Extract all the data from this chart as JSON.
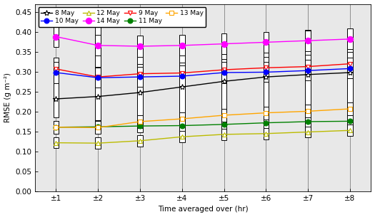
{
  "x_labels": [
    "±1",
    "±2",
    "±3",
    "±4",
    "±5",
    "±6",
    "±7",
    "±8"
  ],
  "x_vals": [
    1,
    2,
    3,
    4,
    5,
    6,
    7,
    8
  ],
  "xlabel": "Time averaged over (hr)",
  "ylabel": "RMSE (g m⁻²)",
  "ylim": [
    0.0,
    0.47
  ],
  "yticks": [
    0.0,
    0.05,
    0.1,
    0.15,
    0.2,
    0.25,
    0.3,
    0.35,
    0.4,
    0.45
  ],
  "series": {
    "8 May": {
      "color": "black",
      "marker": "*",
      "markersize": 6,
      "filled": false,
      "median": [
        0.232,
        0.238,
        0.248,
        0.262,
        0.276,
        0.287,
        0.293,
        0.298
      ],
      "box_lo": [
        0.185,
        0.175,
        0.185,
        0.185,
        0.19,
        0.2,
        0.195,
        0.21
      ],
      "box_hi": [
        0.295,
        0.425,
        0.385,
        0.38,
        0.38,
        0.38,
        0.405,
        0.4
      ]
    },
    "9 May": {
      "color": "red",
      "marker": "v",
      "markersize": 5,
      "filled": false,
      "median": [
        0.307,
        0.287,
        0.295,
        0.297,
        0.305,
        0.31,
        0.313,
        0.32
      ],
      "box_lo": [
        0.28,
        0.262,
        0.27,
        0.273,
        0.278,
        0.283,
        0.288,
        0.293
      ],
      "box_hi": [
        0.335,
        0.312,
        0.32,
        0.323,
        0.332,
        0.337,
        0.342,
        0.349
      ]
    },
    "10 May": {
      "color": "blue",
      "marker": "o",
      "markersize": 5,
      "filled": true,
      "median": [
        0.298,
        0.285,
        0.287,
        0.289,
        0.298,
        0.299,
        0.303,
        0.308
      ],
      "box_lo": [
        0.272,
        0.26,
        0.262,
        0.264,
        0.272,
        0.274,
        0.278,
        0.283
      ],
      "box_hi": [
        0.325,
        0.31,
        0.312,
        0.316,
        0.325,
        0.325,
        0.33,
        0.335
      ]
    },
    "11 May": {
      "color": "green",
      "marker": "o",
      "markersize": 5,
      "filled": true,
      "median": [
        0.161,
        0.162,
        0.164,
        0.165,
        0.168,
        0.172,
        0.175,
        0.176
      ],
      "box_lo": [
        0.145,
        0.146,
        0.148,
        0.149,
        0.152,
        0.156,
        0.159,
        0.16
      ],
      "box_hi": [
        0.177,
        0.178,
        0.18,
        0.181,
        0.184,
        0.188,
        0.191,
        0.192
      ]
    },
    "12 May": {
      "color": "#bbbb00",
      "marker": "^",
      "markersize": 5,
      "filled": false,
      "median": [
        0.122,
        0.121,
        0.127,
        0.137,
        0.143,
        0.145,
        0.149,
        0.153
      ],
      "box_lo": [
        0.108,
        0.107,
        0.113,
        0.123,
        0.129,
        0.131,
        0.135,
        0.139
      ],
      "box_hi": [
        0.136,
        0.135,
        0.141,
        0.151,
        0.157,
        0.159,
        0.163,
        0.167
      ]
    },
    "13 May": {
      "color": "orange",
      "marker": "s",
      "markersize": 5,
      "filled": false,
      "median": [
        0.161,
        0.16,
        0.175,
        0.182,
        0.191,
        0.197,
        0.201,
        0.207
      ],
      "box_lo": [
        0.145,
        0.144,
        0.159,
        0.166,
        0.175,
        0.181,
        0.185,
        0.191
      ],
      "box_hi": [
        0.177,
        0.176,
        0.191,
        0.198,
        0.207,
        0.213,
        0.217,
        0.223
      ]
    },
    "14 May": {
      "color": "magenta",
      "marker": "o",
      "markersize": 6,
      "filled": true,
      "median": [
        0.388,
        0.366,
        0.364,
        0.366,
        0.37,
        0.374,
        0.378,
        0.382
      ],
      "box_lo": [
        0.362,
        0.34,
        0.338,
        0.34,
        0.344,
        0.348,
        0.352,
        0.356
      ],
      "box_hi": [
        0.414,
        0.392,
        0.39,
        0.392,
        0.396,
        0.4,
        0.404,
        0.408
      ]
    }
  },
  "plot_order": [
    "8 May",
    "9 May",
    "10 May",
    "11 May",
    "12 May",
    "13 May",
    "14 May"
  ],
  "legend_order": [
    "8 May",
    "10 May",
    "12 May",
    "14 May",
    "9 May",
    "11 May",
    "13 May"
  ],
  "box_width": 0.13,
  "bg_color": "#e8e8e8"
}
